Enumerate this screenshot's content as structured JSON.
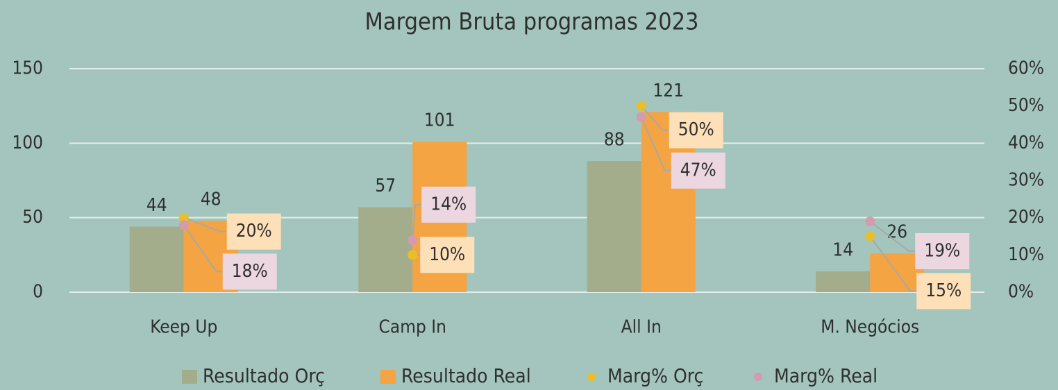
{
  "chart_data": {
    "type": "bar",
    "title": "Margem Bruta programas 2023",
    "categories": [
      "Keep Up",
      "Camp In",
      "All In",
      "M. Negócios"
    ],
    "series": [
      {
        "name": "Resultado Orç",
        "type": "bar",
        "color": "#a3ad8c",
        "values": [
          44,
          57,
          88,
          14
        ]
      },
      {
        "name": "Resultado Real",
        "type": "bar",
        "color": "#f4a442",
        "values": [
          48,
          101,
          121,
          26
        ]
      },
      {
        "name": "Marg% Orç",
        "type": "scatter",
        "axis": "y2",
        "color": "#e8be2a",
        "values": [
          20,
          10,
          50,
          15
        ],
        "value_labels": [
          "20%",
          "10%",
          "50%",
          "15%"
        ]
      },
      {
        "name": "Marg% Real",
        "type": "scatter",
        "axis": "y2",
        "color": "#d49aae",
        "values": [
          18,
          14,
          47,
          19
        ],
        "value_labels": [
          "18%",
          "14%",
          "47%",
          "19%"
        ]
      }
    ],
    "ylim": [
      0,
      150
    ],
    "yticks": [
      0,
      50,
      100,
      150
    ],
    "y2lim": [
      0,
      60
    ],
    "y2ticks": [
      {
        "value": 0,
        "label": "0%"
      },
      {
        "value": 10,
        "label": "10%"
      },
      {
        "value": 20,
        "label": "20%"
      },
      {
        "value": 30,
        "label": "30%"
      },
      {
        "value": 40,
        "label": "40%"
      },
      {
        "value": 50,
        "label": "50%"
      },
      {
        "value": 60,
        "label": "60%"
      }
    ],
    "grid": true
  }
}
